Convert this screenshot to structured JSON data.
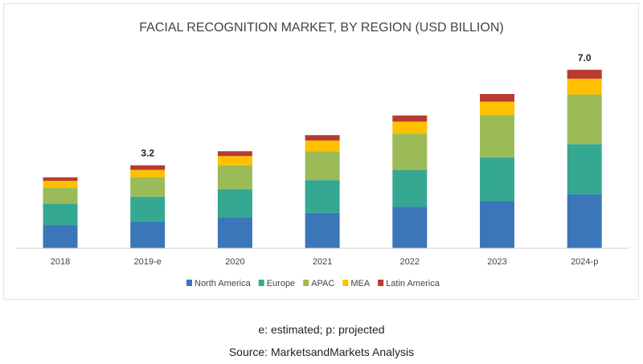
{
  "chart_data": {
    "type": "bar",
    "stacked": true,
    "title": "FACIAL RECOGNITION MARKET, BY REGION (USD BILLION)",
    "xlabel": "",
    "ylabel": "",
    "ylim": [
      0,
      7.0
    ],
    "grid": false,
    "legend_position": "bottom",
    "categories": [
      "2018",
      "2019-e",
      "2020",
      "2021",
      "2022",
      "2023",
      "2024-p"
    ],
    "series": [
      {
        "name": "North America",
        "color": "#3b76b9",
        "values": [
          0.91,
          1.05,
          1.21,
          1.39,
          1.63,
          1.84,
          2.12
        ]
      },
      {
        "name": "Europe",
        "color": "#35a892",
        "values": [
          0.84,
          0.97,
          1.1,
          1.28,
          1.44,
          1.72,
          1.96
        ]
      },
      {
        "name": "APAC",
        "color": "#9bbb59",
        "values": [
          0.63,
          0.76,
          0.94,
          1.13,
          1.42,
          1.66,
          1.94
        ]
      },
      {
        "name": "MEA",
        "color": "#ffc000",
        "values": [
          0.26,
          0.29,
          0.36,
          0.42,
          0.47,
          0.52,
          0.62
        ]
      },
      {
        "name": "Latin America",
        "color": "#b83b30",
        "values": [
          0.14,
          0.18,
          0.19,
          0.21,
          0.24,
          0.3,
          0.35
        ]
      }
    ],
    "annotations": [
      {
        "category": "2019-e",
        "text": "3.2"
      },
      {
        "category": "2024-p",
        "text": "7.0"
      }
    ]
  },
  "footer": {
    "note": "e: estimated; p: projected",
    "source": "Source: MarketsandMarkets Analysis"
  }
}
